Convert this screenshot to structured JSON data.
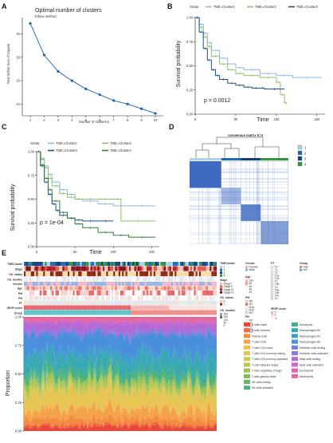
{
  "panels": {
    "a": {
      "letter": "A",
      "chart_data": {
        "type": "line",
        "title": "Optimal number of clusters",
        "subtitle": "Elbow method",
        "xlabel": "Number of clusters k",
        "ylabel": "Total Within Sum of Square",
        "x": [
          1,
          2,
          3,
          4,
          5,
          6,
          7,
          8,
          9,
          10
        ],
        "y": [
          44.5,
          31,
          24,
          20,
          16.5,
          14,
          11.5,
          10,
          8,
          6
        ],
        "xticks": [
          "1",
          "2",
          "3",
          "4",
          "5",
          "6",
          "7",
          "8",
          "9",
          "10"
        ],
        "yticks": [
          "10",
          "20",
          "30",
          "40"
        ],
        "ylim": [
          5,
          47
        ],
        "color": "#1f5fb0"
      }
    },
    "b": {
      "letter": "B",
      "chart_data": {
        "type": "line",
        "legend_title": "Strata",
        "legend_position": "top",
        "xlabel": "Time",
        "ylabel": "Survival probability",
        "xticks": [
          "0",
          "50",
          "100",
          "150"
        ],
        "yticks": [
          "0.00",
          "0.25",
          "0.50",
          "0.75",
          "1.00"
        ],
        "xlim": [
          0,
          160
        ],
        "ylim": [
          0,
          1
        ],
        "annotation": "p = 0.0012",
        "series": [
          {
            "name": "TME=Cluster1",
            "color": "#8ab8e0",
            "x": [
              0,
              5,
              10,
              15,
              20,
              30,
              40,
              50,
              60,
              80,
              100,
              120,
              155
            ],
            "y": [
              1,
              0.93,
              0.84,
              0.74,
              0.66,
              0.58,
              0.52,
              0.48,
              0.46,
              0.42,
              0.4,
              0.38,
              0.37
            ]
          },
          {
            "name": "TME=Cluster2",
            "color": "#8dc06a",
            "x": [
              0,
              5,
              10,
              15,
              20,
              30,
              40,
              50,
              60,
              80,
              100,
              105,
              110,
              112
            ],
            "y": [
              1,
              0.9,
              0.8,
              0.7,
              0.6,
              0.52,
              0.46,
              0.42,
              0.4,
              0.38,
              0.33,
              0.2,
              0.12,
              0.1
            ]
          },
          {
            "name": "TME=Cluster3",
            "color": "#1a4f8c",
            "x": [
              0,
              5,
              10,
              15,
              20,
              25,
              30,
              40,
              50,
              60,
              70,
              80,
              85,
              110
            ],
            "y": [
              1,
              0.85,
              0.68,
              0.56,
              0.46,
              0.4,
              0.36,
              0.32,
              0.3,
              0.28,
              0.27,
              0.27,
              0.26,
              0.26
            ]
          }
        ]
      }
    },
    "c": {
      "letter": "C",
      "chart_data": {
        "type": "line",
        "legend_title": "Strata",
        "legend_position": "top",
        "xlabel": "Time",
        "ylabel": "Survival probability",
        "xticks": [
          "0",
          "50",
          "100",
          "150"
        ],
        "yticks": [
          "0.00",
          "0.25",
          "0.50",
          "0.75",
          "1.00"
        ],
        "xlim": [
          0,
          160
        ],
        "ylim": [
          0,
          1
        ],
        "annotation": "p = 1e-04",
        "series": [
          {
            "name": "TME=Cluster1",
            "color": "#8ab8e0",
            "x": [
              0,
              5,
              10,
              15,
              20,
              30,
              40,
              50,
              60,
              80,
              100,
              120,
              155
            ],
            "y": [
              1,
              0.93,
              0.85,
              0.76,
              0.68,
              0.6,
              0.55,
              0.5,
              0.48,
              0.45,
              0.43,
              0.43,
              0.43
            ]
          },
          {
            "name": "TME=Cluster2",
            "color": "#8dc06a",
            "x": [
              0,
              5,
              10,
              15,
              20,
              30,
              40,
              50,
              60,
              80,
              100,
              110,
              155
            ],
            "y": [
              1,
              0.92,
              0.83,
              0.72,
              0.64,
              0.56,
              0.52,
              0.5,
              0.5,
              0.5,
              0.5,
              0.27,
              0.27
            ]
          },
          {
            "name": "TME=Cluster3",
            "color": "#1a4f8c",
            "x": [
              0,
              5,
              10,
              15,
              20,
              25,
              30,
              40,
              50,
              60,
              80,
              100
            ],
            "y": [
              1,
              0.85,
              0.68,
              0.55,
              0.45,
              0.38,
              0.33,
              0.3,
              0.28,
              0.27,
              0.27,
              0.27
            ]
          },
          {
            "name": "TME=Cluster4",
            "color": "#2e7d32",
            "x": [
              0,
              5,
              10,
              15,
              20,
              30,
              40,
              50,
              60,
              80,
              100,
              120,
              155
            ],
            "y": [
              1,
              0.86,
              0.72,
              0.6,
              0.48,
              0.36,
              0.3,
              0.24,
              0.2,
              0.15,
              0.12,
              0.1,
              0.1
            ]
          }
        ]
      }
    },
    "d": {
      "letter": "D",
      "chart_data": {
        "type": "heatmap",
        "title": "consensus matrix k=4",
        "legend": [
          {
            "label": "1",
            "color": "#a9d3ee"
          },
          {
            "label": "2",
            "color": "#1f6bb0"
          },
          {
            "label": "3",
            "color": "#123f7a"
          },
          {
            "label": "4",
            "color": "#2f9a3a"
          }
        ]
      }
    },
    "e": {
      "letter": "E",
      "row_labels": [
        "TMECluster",
        "Stage",
        "OS_status",
        "OS_months",
        "Gender",
        "Age",
        "PM",
        "PN",
        "PT",
        "IRGPI score",
        "Group"
      ],
      "legend_texts": {
        "tmecluster": {
          "title": "TMECluster",
          "items": [
            "1",
            "2",
            "3",
            "4"
          ]
        },
        "gender": {
          "title": "Gender",
          "items": [
            "Female",
            "Male"
          ]
        },
        "age": {
          "title": "Age",
          "items": [
            "100",
            "80",
            "60",
            "40",
            "20"
          ]
        },
        "pt": {
          "title": "PT",
          "items": [
            "T0",
            "T1",
            "T2",
            "T2a",
            "T2b",
            "T3",
            "T3b",
            "T4",
            "T4a",
            "T4b",
            "T4c",
            "Tx"
          ]
        },
        "group": {
          "title": "Group",
          "items": [
            "high",
            "low"
          ]
        },
        "stage": {
          "title": "Stage",
          "items": [
            "Stage I",
            "Stage II",
            "Stage III",
            "Stage IV"
          ]
        },
        "os_status": {
          "title": "OS_status",
          "items": [
            "0",
            "1"
          ]
        },
        "pm": {
          "title": "PM",
          "items": [
            "M0",
            "M1",
            "M1a",
            "M1b",
            "MX"
          ]
        },
        "os_months": {
          "title": "OS_months",
          "items": [
            "200",
            "150",
            "100",
            "50",
            "0"
          ]
        },
        "pn": {
          "title": "PN",
          "items": [
            "N0",
            "N1",
            "N2",
            "N3",
            "NX"
          ]
        },
        "irgpi": {
          "title": "IRGPI score",
          "items": [
            "3",
            "0",
            "-3"
          ]
        }
      },
      "chart_data": {
        "type": "area",
        "ylabel": "Proportion",
        "yticks": [
          "0.00",
          "0.25",
          "0.50",
          "0.75",
          "1.00"
        ],
        "ylim": [
          0,
          1
        ],
        "series": [
          {
            "name": "B cells naive",
            "color": "#e8483b",
            "value": 0.04
          },
          {
            "name": "B cells memory",
            "color": "#f06a3e",
            "value": 0.02
          },
          {
            "name": "Plasma cells",
            "color": "#f48b43",
            "value": 0.05
          },
          {
            "name": "T cells CD8",
            "color": "#f5a34a",
            "value": 0.08
          },
          {
            "name": "T cells CD4 naive",
            "color": "#f2b94f",
            "value": 0.02
          },
          {
            "name": "T cells CD4 memory resting",
            "color": "#e6c552",
            "value": 0.12
          },
          {
            "name": "T cells CD4 memory activated",
            "color": "#d0c853",
            "value": 0.03
          },
          {
            "name": "T cells follicular helper",
            "color": "#b7c754",
            "value": 0.04
          },
          {
            "name": "T cells regulatory (Tregs)",
            "color": "#9cc256",
            "value": 0.03
          },
          {
            "name": "T cells gamma delta",
            "color": "#7fbc5a",
            "value": 0.01
          },
          {
            "name": "NK cells resting",
            "color": "#62b762",
            "value": 0.02
          },
          {
            "name": "NK cells activated",
            "color": "#4cb27a",
            "value": 0.03
          },
          {
            "name": "Monocytes",
            "color": "#3fae95",
            "value": 0.04
          },
          {
            "name": "Macrophages M0",
            "color": "#38a9b0",
            "value": 0.1
          },
          {
            "name": "Macrophages M1",
            "color": "#3a9fcb",
            "value": 0.05
          },
          {
            "name": "Macrophages M2",
            "color": "#4a8fdc",
            "value": 0.16
          },
          {
            "name": "Dendritic cells resting",
            "color": "#6f7fe0",
            "value": 0.02
          },
          {
            "name": "Dendritic cells activated",
            "color": "#9374dd",
            "value": 0.02
          },
          {
            "name": "Mast cells resting",
            "color": "#b36ad6",
            "value": 0.06
          },
          {
            "name": "Mast cells activated",
            "color": "#cc63c6",
            "value": 0.02
          },
          {
            "name": "Eosinophils",
            "color": "#dd62ad",
            "value": 0.01
          },
          {
            "name": "Neutrophils",
            "color": "#e4679a",
            "value": 0.03
          }
        ]
      }
    }
  }
}
